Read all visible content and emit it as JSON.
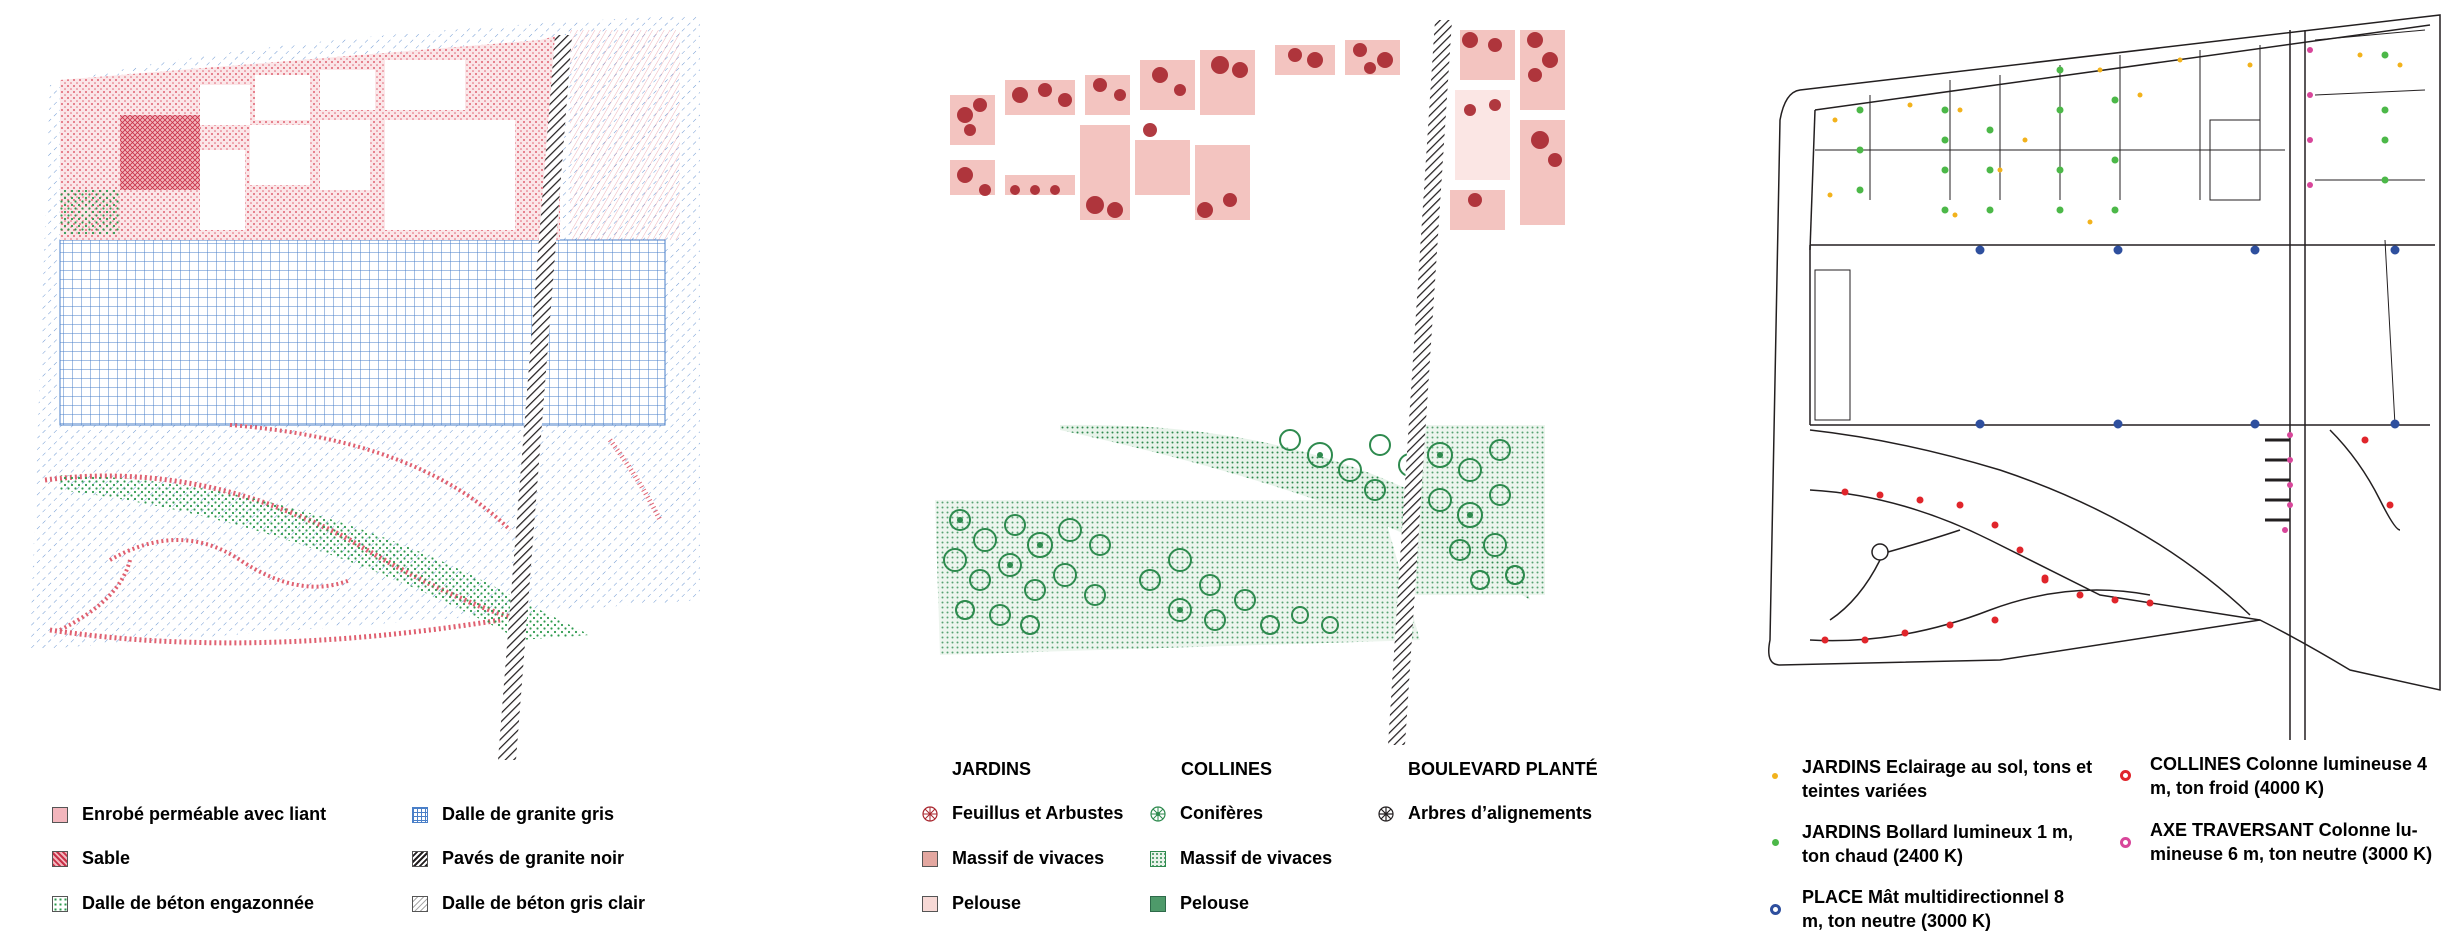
{
  "materials_legend": {
    "items": [
      {
        "label": "Enrobé perméable avec liant",
        "color": "#e06070"
      },
      {
        "label": "Sable",
        "color": "#c83048"
      },
      {
        "label": "Dalle de béton engazonnée",
        "color": "#2e9a4e"
      },
      {
        "label": "Dalle de granite gris",
        "color": "#4a7fc8"
      },
      {
        "label": "Pavés de granite noir",
        "color": "#231f20"
      },
      {
        "label": "Dalle de béton gris clair",
        "color": "#888888"
      }
    ]
  },
  "vegetation_legend": {
    "headers": [
      "JARDINS",
      "COLLINES",
      "BOULEVARD PLANTÉ"
    ],
    "items": [
      {
        "label": "Feuillus et Arbustes",
        "color": "#a8262e"
      },
      {
        "label": "Massif de vivaces",
        "color": "#e3a7a0"
      },
      {
        "label": "Pelouse",
        "color": "#f7d9d6"
      },
      {
        "label": "Conifères",
        "color": "#2e8a4e"
      },
      {
        "label": "Massif de vivaces",
        "color": "#2e8a4e"
      },
      {
        "label": "Pelouse",
        "color": "#4e9a6a"
      },
      {
        "label": "Arbres d’alignements",
        "color": "#231f20"
      }
    ]
  },
  "lighting_legend": {
    "items": [
      {
        "label_1": "JARDINS Eclairage au sol, tons et",
        "label_2": "teintes variées",
        "color": "#f2b21c"
      },
      {
        "label_1": "JARDINS Bollard lumineux 1 m,",
        "label_2": "ton chaud (2400 K)",
        "color": "#4cb848"
      },
      {
        "label_1": "PLACE Mât multidirectionnel  8",
        "label_2": "m, ton neutre (3000 K)",
        "color": "#2e4f9e"
      },
      {
        "label_1": "COLLINES Colonne lumineuse 4",
        "label_2": "m, ton froid (4000 K)",
        "color": "#e0252b"
      },
      {
        "label_1": "AXE TRAVERSANT Colonne lu-",
        "label_2": "mineuse 6 m, ton neutre (3000 K)",
        "color": "#d8469a"
      }
    ]
  }
}
